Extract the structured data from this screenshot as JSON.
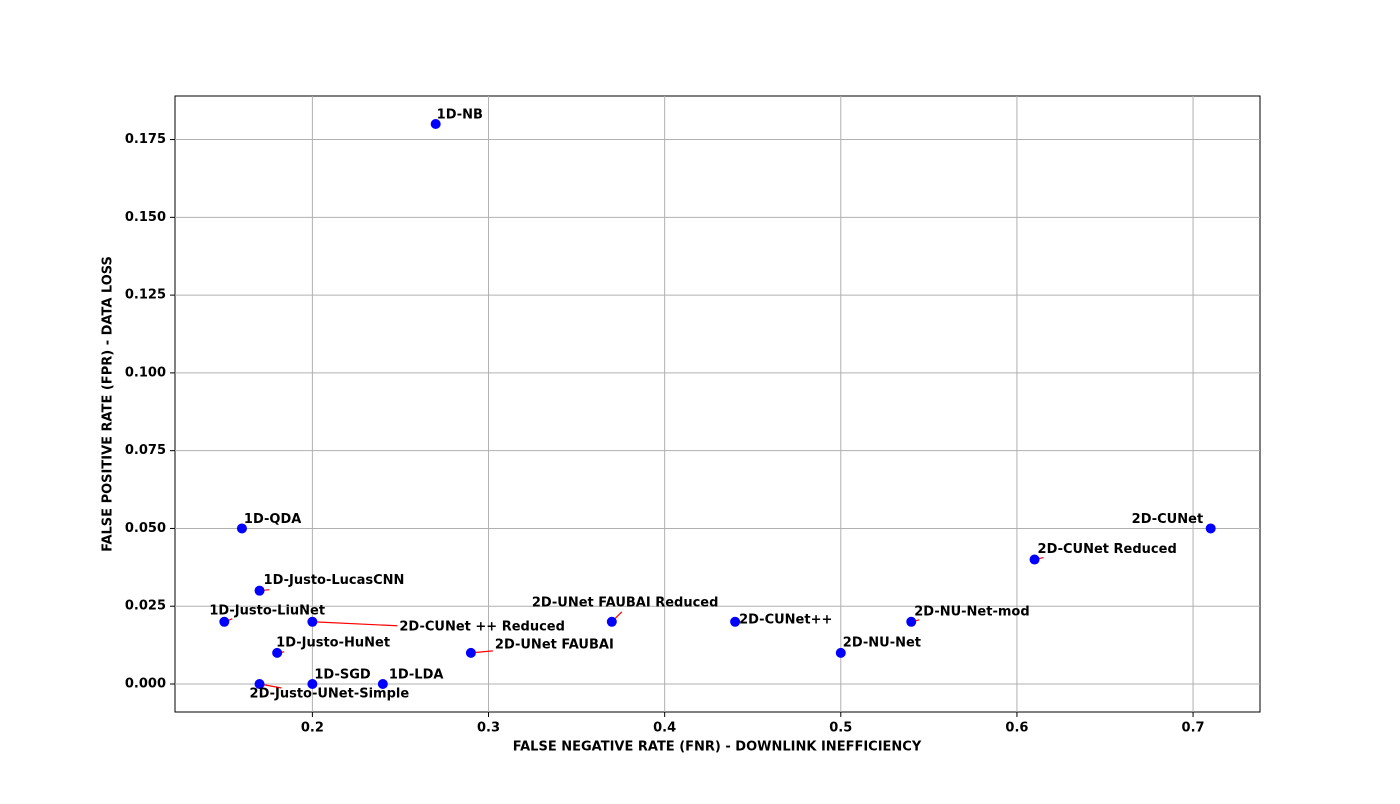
{
  "chart_data": {
    "type": "scatter",
    "x_label": "FALSE NEGATIVE RATE (FNR) - DOWNLINK INEFFICIENCY",
    "y_label": "FALSE POSITIVE RATE (FPR) - DATA LOSS",
    "color": "#0000ff",
    "annotation_color": "#ff0000",
    "grid": true,
    "xlim": [
      0.122,
      0.738
    ],
    "ylim": [
      -0.009,
      0.189
    ],
    "xticks": [
      0.2,
      0.3,
      0.4,
      0.5,
      0.6,
      0.7
    ],
    "yticks": [
      {
        "value": 0,
        "label": "0.000"
      },
      {
        "value": 0.025,
        "label": "0.025"
      },
      {
        "value": 0.05,
        "label": "0.050"
      },
      {
        "value": 0.075,
        "label": "0.075"
      },
      {
        "value": 0.1,
        "label": "0.100"
      },
      {
        "value": 0.125,
        "label": "0.125"
      },
      {
        "value": 0.15,
        "label": "0.150"
      },
      {
        "value": 0.175,
        "label": "0.175"
      }
    ],
    "labels": [
      "1D-NB",
      "1D-QDA",
      "1D-Justo-LucasCNN",
      "1D-Justo-LiuNet",
      "1D-Justo-HuNet",
      "1D-SGD",
      "2D-Justo-UNet-Simple",
      "1D-LDA",
      "2D-CUNet ++ Reduced",
      "2D-UNet FAUBAI",
      "2D-UNet FAUBAI Reduced",
      "2D-CUNet++",
      "2D-NU-Net",
      "2D-NU-Net-mod",
      "2D-CUNet Reduced",
      "2D-CUNet"
    ],
    "x": [
      0.27,
      0.16,
      0.17,
      0.15,
      0.18,
      0.2,
      0.17,
      0.24,
      0.2,
      0.29,
      0.37,
      0.44,
      0.5,
      0.54,
      0.61,
      0.71
    ],
    "y": [
      0.18,
      0.05,
      0.03,
      0.02,
      0.01,
      0,
      0,
      0,
      0.02,
      0.01,
      0.02,
      0.02,
      0.01,
      0.02,
      0.04,
      0.05
    ]
  }
}
